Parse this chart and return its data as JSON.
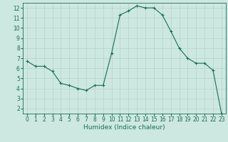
{
  "x": [
    0,
    1,
    2,
    3,
    4,
    5,
    6,
    7,
    8,
    9,
    10,
    11,
    12,
    13,
    14,
    15,
    16,
    17,
    18,
    19,
    20,
    21,
    22,
    23
  ],
  "y": [
    6.7,
    6.2,
    6.2,
    5.7,
    4.5,
    4.3,
    4.0,
    3.8,
    4.3,
    4.3,
    7.5,
    11.3,
    11.7,
    12.2,
    12.0,
    12.0,
    11.3,
    9.7,
    8.0,
    7.0,
    6.5,
    6.5,
    5.8,
    1.5
  ],
  "line_color": "#1a6b5a",
  "marker": "+",
  "marker_size": 3,
  "xlabel": "Humidex (Indice chaleur)",
  "xlim": [
    -0.5,
    23.5
  ],
  "ylim": [
    1.5,
    12.5
  ],
  "yticks": [
    2,
    3,
    4,
    5,
    6,
    7,
    8,
    9,
    10,
    11,
    12
  ],
  "xticks": [
    0,
    1,
    2,
    3,
    4,
    5,
    6,
    7,
    8,
    9,
    10,
    11,
    12,
    13,
    14,
    15,
    16,
    17,
    18,
    19,
    20,
    21,
    22,
    23
  ],
  "bg_color": "#cde8e0",
  "grid_color": "#aecfc6",
  "line_width": 0.8,
  "tick_labelsize": 5.5,
  "xlabel_fontsize": 6.5
}
